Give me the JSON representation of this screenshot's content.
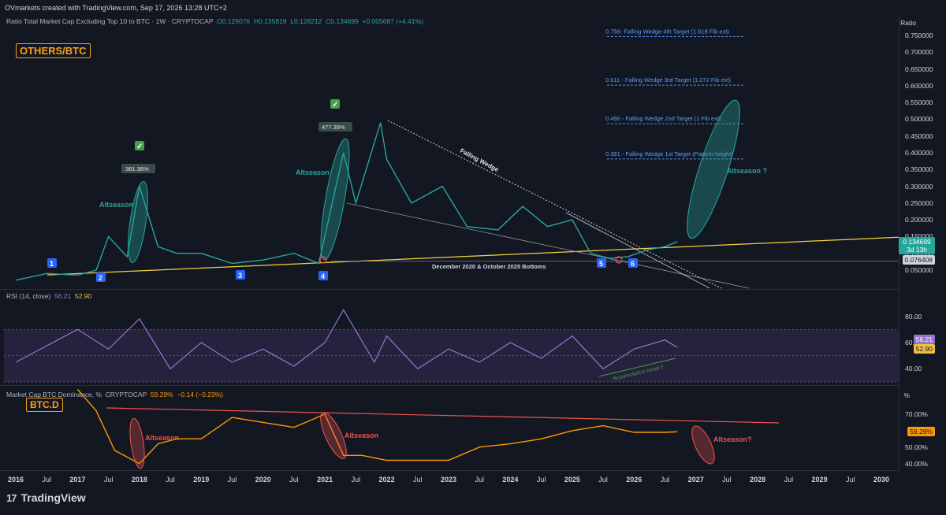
{
  "header": {
    "created": "OVmarkets created with TradingView.com, Sep 17, 2026 13:28 UTC+2"
  },
  "main_pane": {
    "symbol": "Ratio Total Market Cap Excluding Top 10 to BTC · 1W · CRYPTOCAP",
    "o": "O0.129076",
    "h": "H0.135819",
    "l": "L0.128212",
    "c": "C0.134699",
    "chg": "+0.005687 (+4.41%)",
    "tag": "OTHERS/BTC",
    "axis_title": "Ratio",
    "y_ticks": [
      "0.750000",
      "0.700000",
      "0.650000",
      "0.600000",
      "0.550000",
      "0.500000",
      "0.450000",
      "0.400000",
      "0.350000",
      "0.300000",
      "0.250000",
      "0.200000",
      "0.150000",
      "0.100000",
      "0.050000"
    ],
    "price_label": "0.134699",
    "countdown": "3d 13h",
    "level_label": "0.076408",
    "targets": [
      "0.756- Falling Wedge 4th Target (1.618 Fib ext)",
      "0.611 - Falling Wedge 3rd Target (1.272 Fib ext)",
      "0.496 - Falling Wedge 2nd Target (1 Fib ext)",
      "0.391 - Falling Wedge 1st Target (Pattern height)"
    ],
    "annotations": {
      "wedge": "Falling Wedge",
      "alt1": "Altseason",
      "alt2": "Altseason",
      "alt3": "Altseason ?",
      "pct1": "381.38%",
      "pct2": "477.39%",
      "bottoms": "December 2020 & October 2025 Bottoms",
      "markers": [
        "1",
        "2",
        "3",
        "4",
        "5",
        "6"
      ]
    }
  },
  "rsi_pane": {
    "title": "RSI (14, close)",
    "rsi": "56.21",
    "ma": "52.90",
    "y_ticks": [
      "80.00",
      "60.00",
      "40.00"
    ],
    "annotation": "Accumulation trend ?"
  },
  "btcd_pane": {
    "title": "Market Cap BTC Dominance, %",
    "source": "CRYPTOCAP",
    "value": "59.29%",
    "chg": "−0.14 (−0.23%)",
    "tag": "BTC.D",
    "axis_title": "%",
    "y_ticks": [
      "70.00%",
      "50.00%",
      "40.00%"
    ],
    "annotations": {
      "alt1": "Altseason",
      "alt2": "Altseason",
      "alt3": "Altseason?"
    }
  },
  "x_axis": [
    {
      "t": "2016",
      "year": true
    },
    {
      "t": "Jul",
      "year": false
    },
    {
      "t": "2017",
      "year": true
    },
    {
      "t": "Jul",
      "year": false
    },
    {
      "t": "2018",
      "year": true
    },
    {
      "t": "Jul",
      "year": false
    },
    {
      "t": "2019",
      "year": true
    },
    {
      "t": "Jul",
      "year": false
    },
    {
      "t": "2020",
      "year": true
    },
    {
      "t": "Jul",
      "year": false
    },
    {
      "t": "2021",
      "year": true
    },
    {
      "t": "Jul",
      "year": false
    },
    {
      "t": "2022",
      "year": true
    },
    {
      "t": "Jul",
      "year": false
    },
    {
      "t": "2023",
      "year": true
    },
    {
      "t": "Jul",
      "year": false
    },
    {
      "t": "2024",
      "year": true
    },
    {
      "t": "Jul",
      "year": false
    },
    {
      "t": "2025",
      "year": true
    },
    {
      "t": "Jul",
      "year": false
    },
    {
      "t": "2026",
      "year": true
    },
    {
      "t": "Jul",
      "year": false
    },
    {
      "t": "2027",
      "year": true
    },
    {
      "t": "Jul",
      "year": false
    },
    {
      "t": "2028",
      "year": true
    },
    {
      "t": "Jul",
      "year": false
    },
    {
      "t": "2029",
      "year": true
    },
    {
      "t": "Jul",
      "year": false
    },
    {
      "t": "2030",
      "year": true
    }
  ],
  "footer": {
    "brand": "TradingView",
    "mark": "17"
  },
  "chart_data": [
    {
      "type": "line",
      "series": [
        {
          "name": "OTHERS/BTC",
          "x": [
            2016.0,
            2016.5,
            2017.0,
            2017.3,
            2017.5,
            2017.8,
            2018.0,
            2018.3,
            2018.6,
            2019.0,
            2019.5,
            2020.0,
            2020.5,
            2020.9,
            2021.3,
            2021.5,
            2021.9,
            2022.0,
            2022.4,
            2022.9,
            2023.3,
            2023.8,
            2024.2,
            2024.6,
            2025.0,
            2025.3,
            2025.6,
            2025.9,
            2026.2,
            2026.5,
            2026.7
          ],
          "values": [
            0.02,
            0.04,
            0.035,
            0.05,
            0.15,
            0.09,
            0.3,
            0.12,
            0.1,
            0.1,
            0.07,
            0.08,
            0.1,
            0.07,
            0.4,
            0.25,
            0.49,
            0.38,
            0.25,
            0.3,
            0.18,
            0.17,
            0.24,
            0.18,
            0.2,
            0.1,
            0.085,
            0.09,
            0.11,
            0.12,
            0.1347
          ]
        }
      ],
      "ylim": [
        0.0,
        0.78
      ]
    },
    {
      "type": "line",
      "series": [
        {
          "name": "RSI (14, close)",
          "x": [
            2016.0,
            2017.0,
            2017.5,
            2018.0,
            2018.5,
            2019.0,
            2019.5,
            2020.0,
            2020.5,
            2021.0,
            2021.3,
            2021.8,
            2022.0,
            2022.5,
            2023.0,
            2023.5,
            2024.0,
            2024.5,
            2025.0,
            2025.5,
            2026.0,
            2026.5,
            2026.7
          ],
          "values": [
            45,
            70,
            55,
            78,
            40,
            60,
            45,
            55,
            42,
            60,
            85,
            45,
            65,
            40,
            55,
            45,
            60,
            48,
            65,
            40,
            55,
            62,
            56.21
          ]
        }
      ],
      "ylim": [
        30,
        90
      ]
    },
    {
      "type": "line",
      "series": [
        {
          "name": "Market Cap BTC Dominance, %",
          "x": [
            2017.0,
            2017.3,
            2017.6,
            2018.0,
            2018.3,
            2018.6,
            2019.0,
            2019.5,
            2020.0,
            2020.5,
            2021.0,
            2021.3,
            2021.6,
            2022.0,
            2022.5,
            2023.0,
            2023.5,
            2024.0,
            2024.5,
            2025.0,
            2025.5,
            2026.0,
            2026.5,
            2026.7
          ],
          "values": [
            85,
            72,
            48,
            40,
            52,
            55,
            55,
            68,
            65,
            62,
            70,
            45,
            45,
            42,
            42,
            42,
            50,
            52,
            55,
            60,
            63,
            59,
            59,
            59.29
          ]
        }
      ],
      "ylim": [
        37,
        80
      ]
    }
  ]
}
